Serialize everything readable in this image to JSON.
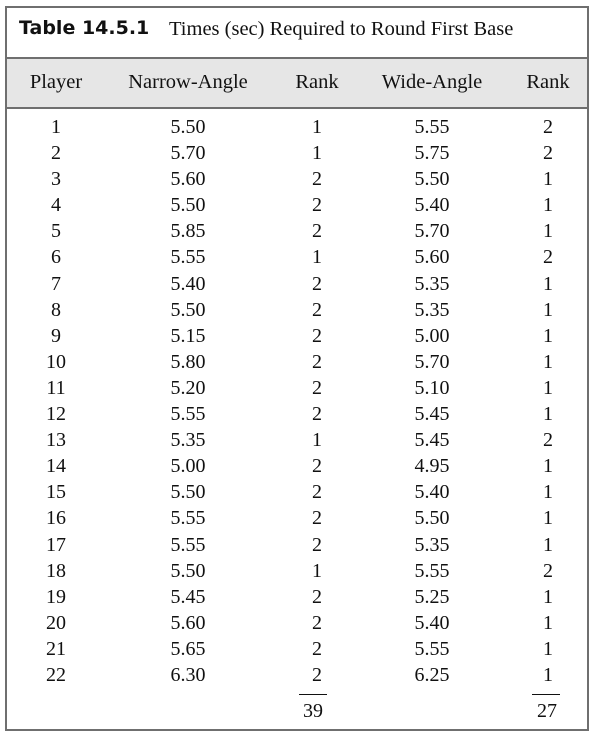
{
  "table": {
    "number": "Table 14.5.1",
    "caption": "Times (sec) Required to Round First Base",
    "columns": [
      "Player",
      "Narrow-Angle",
      "Rank",
      "Wide-Angle",
      "Rank"
    ],
    "rows": [
      [
        "1",
        "5.50",
        "1",
        "5.55",
        "2"
      ],
      [
        "2",
        "5.70",
        "1",
        "5.75",
        "2"
      ],
      [
        "3",
        "5.60",
        "2",
        "5.50",
        "1"
      ],
      [
        "4",
        "5.50",
        "2",
        "5.40",
        "1"
      ],
      [
        "5",
        "5.85",
        "2",
        "5.70",
        "1"
      ],
      [
        "6",
        "5.55",
        "1",
        "5.60",
        "2"
      ],
      [
        "7",
        "5.40",
        "2",
        "5.35",
        "1"
      ],
      [
        "8",
        "5.50",
        "2",
        "5.35",
        "1"
      ],
      [
        "9",
        "5.15",
        "2",
        "5.00",
        "1"
      ],
      [
        "10",
        "5.80",
        "2",
        "5.70",
        "1"
      ],
      [
        "11",
        "5.20",
        "2",
        "5.10",
        "1"
      ],
      [
        "12",
        "5.55",
        "2",
        "5.45",
        "1"
      ],
      [
        "13",
        "5.35",
        "1",
        "5.45",
        "2"
      ],
      [
        "14",
        "5.00",
        "2",
        "4.95",
        "1"
      ],
      [
        "15",
        "5.50",
        "2",
        "5.40",
        "1"
      ],
      [
        "16",
        "5.55",
        "2",
        "5.50",
        "1"
      ],
      [
        "17",
        "5.55",
        "2",
        "5.35",
        "1"
      ],
      [
        "18",
        "5.50",
        "1",
        "5.55",
        "2"
      ],
      [
        "19",
        "5.45",
        "2",
        "5.25",
        "1"
      ],
      [
        "20",
        "5.60",
        "2",
        "5.40",
        "1"
      ],
      [
        "21",
        "5.65",
        "2",
        "5.55",
        "1"
      ],
      [
        "22",
        "6.30",
        "2",
        "6.25",
        "1"
      ]
    ],
    "totals": {
      "narrow_rank": "39",
      "wide_rank": "27"
    }
  }
}
